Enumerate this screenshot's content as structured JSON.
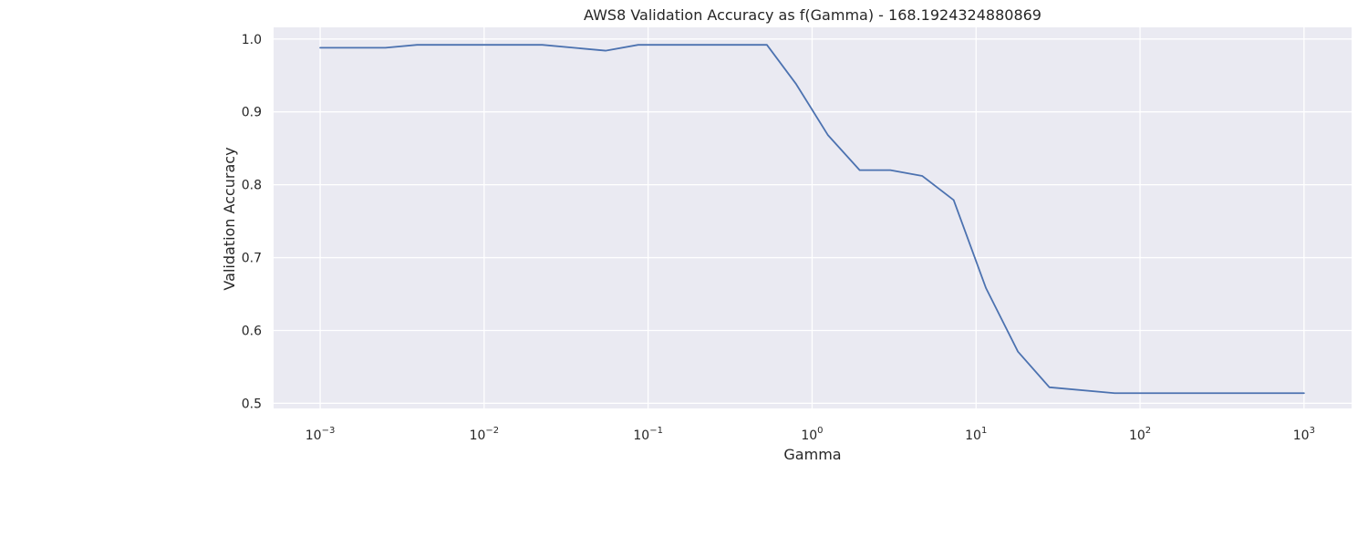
{
  "chart_data": {
    "type": "line",
    "title": "AWS8 Validation Accuracy as f(Gamma) - 168.1924324880869",
    "xlabel": "Gamma",
    "ylabel": "Validation Accuracy",
    "x_scale": "log",
    "xlim": [
      0.00052,
      1950
    ],
    "ylim": [
      0.493,
      1.016
    ],
    "grid": true,
    "colors": {
      "background": "#eaeaf2",
      "grid": "#ffffff",
      "line": "#4c72b0",
      "text": "#262626"
    },
    "x_ticks": [
      {
        "base": "10",
        "exp": "−3",
        "value": 0.001
      },
      {
        "base": "10",
        "exp": "−2",
        "value": 0.01
      },
      {
        "base": "10",
        "exp": "−1",
        "value": 0.1
      },
      {
        "base": "10",
        "exp": "0",
        "value": 1
      },
      {
        "base": "10",
        "exp": "1",
        "value": 10
      },
      {
        "base": "10",
        "exp": "2",
        "value": 100
      },
      {
        "base": "10",
        "exp": "3",
        "value": 1000
      }
    ],
    "y_ticks": [
      {
        "label": "0.5",
        "value": 0.5
      },
      {
        "label": "0.6",
        "value": 0.6
      },
      {
        "label": "0.7",
        "value": 0.7
      },
      {
        "label": "0.8",
        "value": 0.8
      },
      {
        "label": "0.9",
        "value": 0.9
      },
      {
        "label": "1.0",
        "value": 1.0
      }
    ],
    "series": [
      {
        "x": [
          0.001,
          0.0025,
          0.0039,
          0.0226,
          0.055,
          0.087,
          0.53,
          0.8,
          1.25,
          1.95,
          3.0,
          4.7,
          7.3,
          11.5,
          18,
          28,
          70,
          1000
        ],
        "y": [
          0.988,
          0.988,
          0.992,
          0.992,
          0.984,
          0.992,
          0.992,
          0.938,
          0.868,
          0.82,
          0.82,
          0.812,
          0.779,
          0.658,
          0.571,
          0.522,
          0.514,
          0.514
        ]
      }
    ]
  }
}
